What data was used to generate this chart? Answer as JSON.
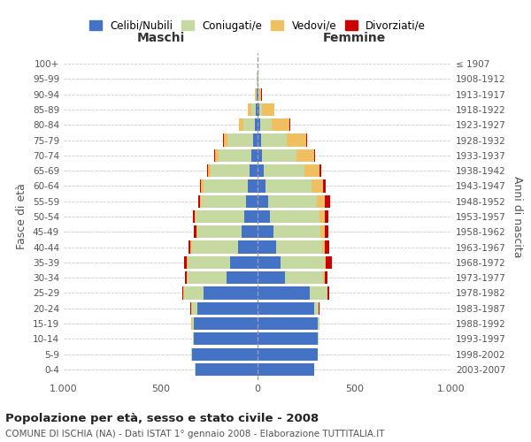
{
  "age_groups": [
    "0-4",
    "5-9",
    "10-14",
    "15-19",
    "20-24",
    "25-29",
    "30-34",
    "35-39",
    "40-44",
    "45-49",
    "50-54",
    "55-59",
    "60-64",
    "65-69",
    "70-74",
    "75-79",
    "80-84",
    "85-89",
    "90-94",
    "95-99",
    "100+"
  ],
  "birth_years": [
    "2003-2007",
    "1998-2002",
    "1993-1997",
    "1988-1992",
    "1983-1987",
    "1978-1982",
    "1973-1977",
    "1968-1972",
    "1963-1967",
    "1958-1962",
    "1953-1957",
    "1948-1952",
    "1943-1947",
    "1938-1942",
    "1933-1937",
    "1928-1932",
    "1923-1927",
    "1918-1922",
    "1913-1917",
    "1908-1912",
    "≤ 1907"
  ],
  "male_celibi": [
    320,
    340,
    330,
    330,
    310,
    280,
    160,
    140,
    100,
    80,
    70,
    60,
    50,
    40,
    30,
    25,
    15,
    10,
    5,
    2,
    2
  ],
  "male_coniugati": [
    2,
    2,
    5,
    10,
    30,
    100,
    200,
    220,
    240,
    230,
    250,
    230,
    230,
    200,
    170,
    130,
    60,
    20,
    5,
    2,
    0
  ],
  "male_vedovi": [
    0,
    0,
    0,
    2,
    2,
    3,
    5,
    5,
    5,
    5,
    5,
    8,
    10,
    15,
    20,
    20,
    20,
    20,
    5,
    2,
    0
  ],
  "male_divorziati": [
    0,
    0,
    0,
    0,
    3,
    5,
    10,
    15,
    10,
    15,
    10,
    10,
    8,
    5,
    5,
    5,
    0,
    0,
    0,
    0,
    0
  ],
  "female_celibi": [
    290,
    310,
    310,
    310,
    290,
    270,
    140,
    120,
    95,
    80,
    65,
    55,
    40,
    30,
    25,
    20,
    15,
    10,
    5,
    2,
    2
  ],
  "female_coniugati": [
    2,
    2,
    5,
    8,
    25,
    90,
    200,
    225,
    240,
    245,
    255,
    250,
    240,
    210,
    175,
    130,
    60,
    15,
    5,
    2,
    0
  ],
  "female_vedovi": [
    0,
    0,
    0,
    0,
    2,
    3,
    5,
    5,
    10,
    20,
    25,
    40,
    60,
    80,
    90,
    100,
    90,
    60,
    10,
    2,
    0
  ],
  "female_divorziati": [
    0,
    0,
    0,
    0,
    3,
    5,
    15,
    35,
    25,
    20,
    20,
    30,
    10,
    8,
    5,
    5,
    5,
    2,
    2,
    0,
    0
  ],
  "colors": {
    "celibi": "#4472c4",
    "coniugati": "#c5d9a0",
    "vedovi": "#f0c060",
    "divorziati": "#cc0000"
  },
  "title": "Popolazione per età, sesso e stato civile - 2008",
  "subtitle": "COMUNE DI ISCHIA (NA) - Dati ISTAT 1° gennaio 2008 - Elaborazione TUTTITALIA.IT",
  "xlabel_left": "Maschi",
  "xlabel_right": "Femmine",
  "ylabel_left": "Fasce di età",
  "ylabel_right": "Anni di nascita",
  "xmin": -1000,
  "xmax": 1000,
  "legend_labels": [
    "Celibi/Nubili",
    "Coniugati/e",
    "Vedovi/e",
    "Divorziati/e"
  ],
  "background_color": "#ffffff",
  "grid_color": "#cccccc"
}
